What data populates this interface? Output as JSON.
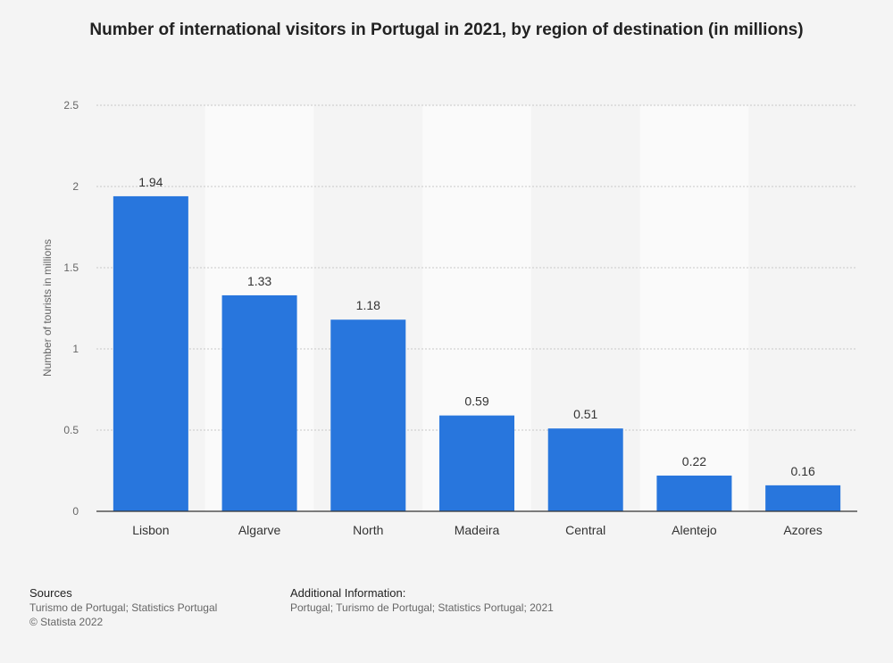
{
  "chart_data": {
    "type": "bar",
    "title": "Number of international visitors in Portugal in 2021, by region of destination (in millions)",
    "xlabel": "",
    "ylabel": "Number of tourists in millions",
    "categories": [
      "Lisbon",
      "Algarve",
      "North",
      "Madeira",
      "Central",
      "Alentejo",
      "Azores"
    ],
    "values": [
      1.94,
      1.33,
      1.18,
      0.59,
      0.51,
      0.22,
      0.16
    ],
    "value_labels": [
      "1.94",
      "1.33",
      "1.18",
      "0.59",
      "0.51",
      "0.22",
      "0.16"
    ],
    "ylim": [
      0,
      2.5
    ],
    "yticks": [
      0,
      0.5,
      1,
      1.5,
      2,
      2.5
    ],
    "ytick_labels": [
      "0",
      "0.5",
      "1",
      "1.5",
      "2",
      "2.5"
    ],
    "grid": true,
    "bar_color": "#2876dd"
  },
  "footer": {
    "sources_heading": "Sources",
    "sources_text": "Turismo de Portugal; Statistics Portugal",
    "copyright": "© Statista 2022",
    "additional_heading": "Additional Information:",
    "additional_text": "Portugal; Turismo de Portugal; Statistics Portugal; 2021"
  }
}
